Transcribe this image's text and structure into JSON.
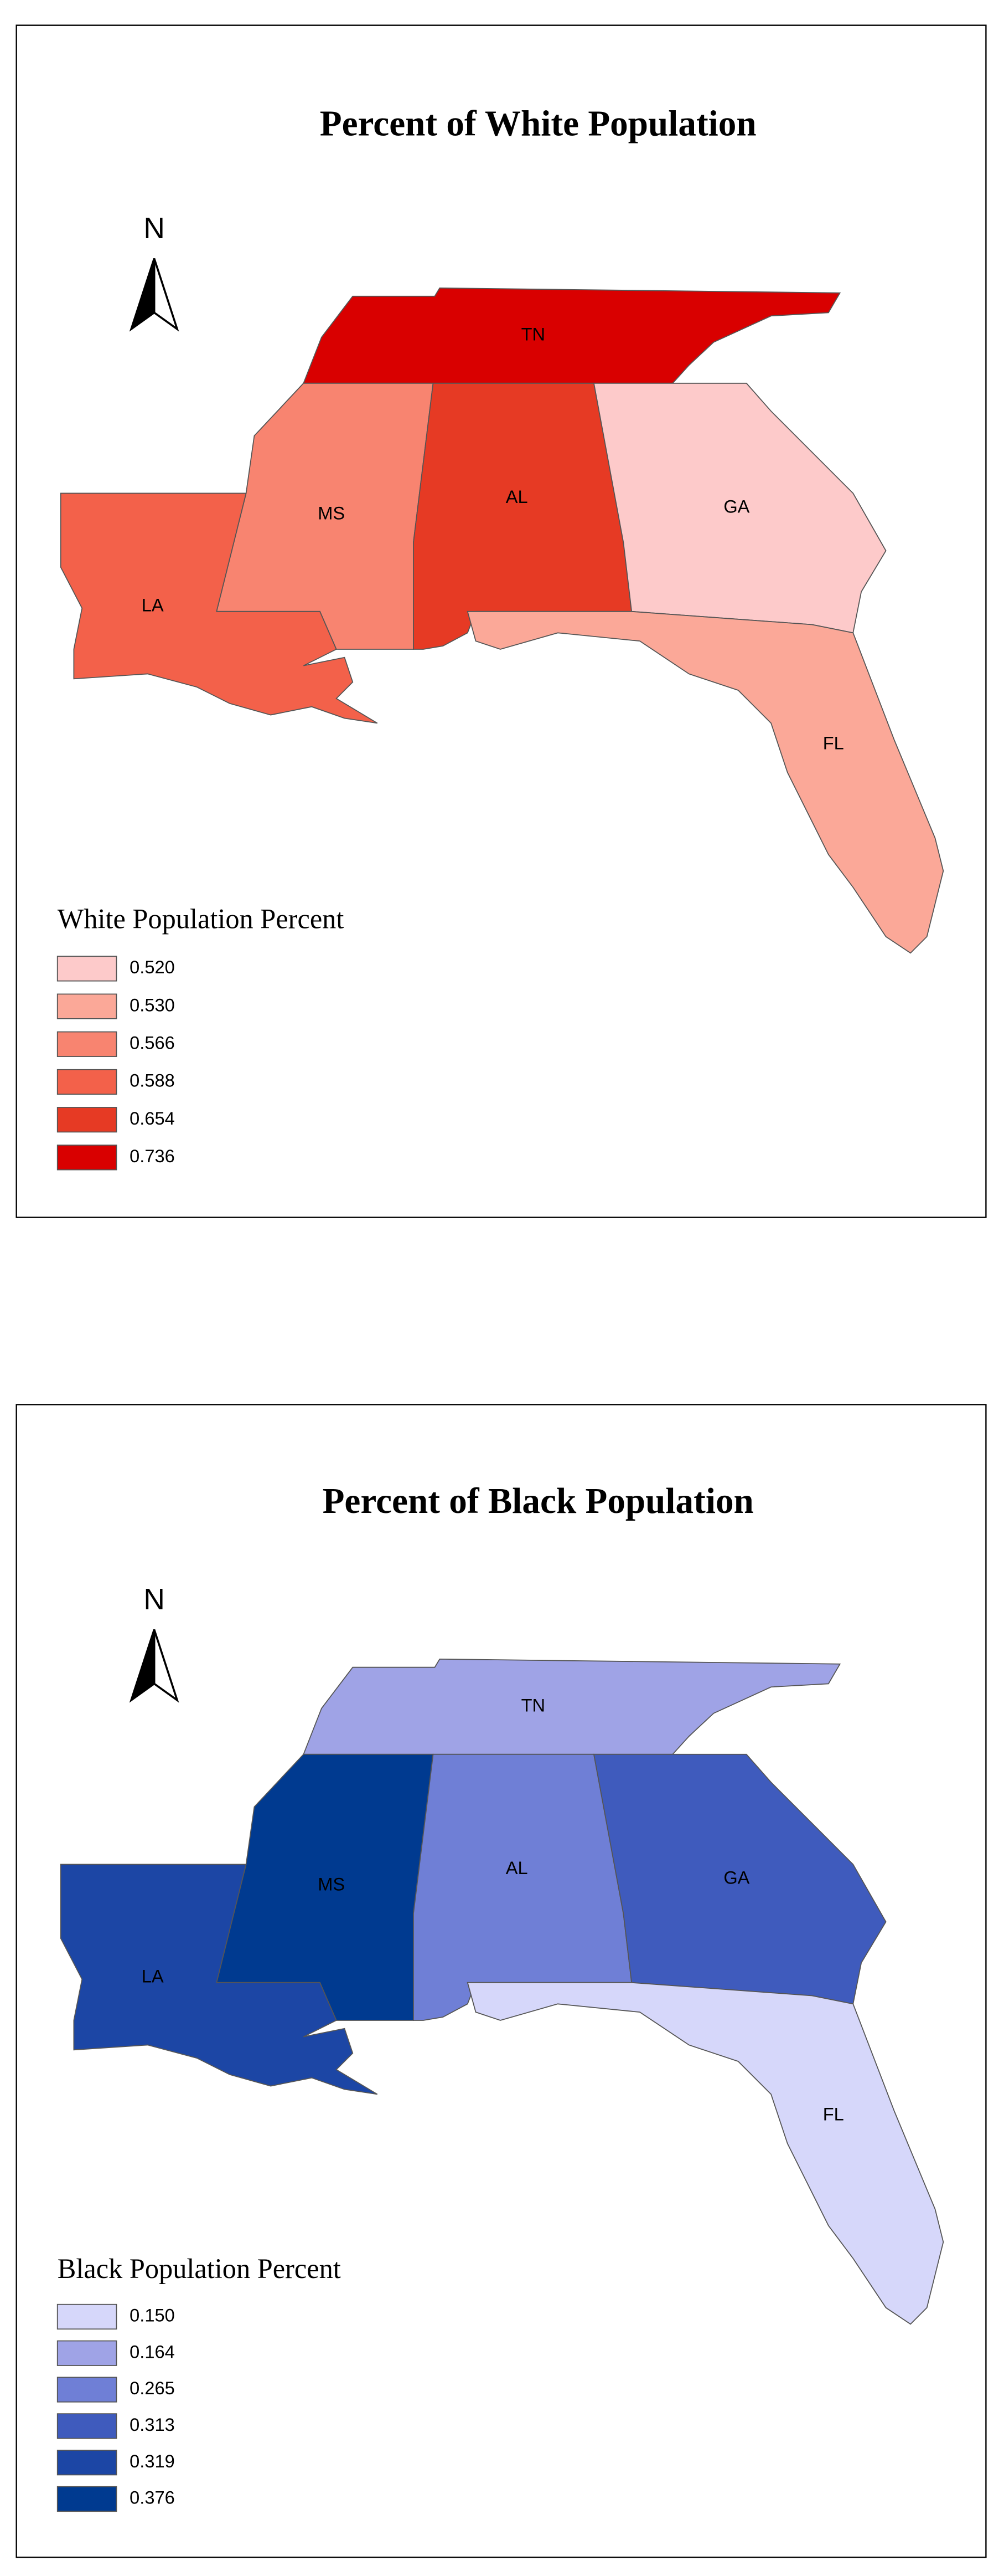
{
  "maps": [
    {
      "title": "Percent of White Population",
      "legend_title": "White Population Percent",
      "legend": [
        {
          "value": 0.52,
          "label": "0.520",
          "color": "#fdcaca"
        },
        {
          "value": 0.53,
          "label": "0.530",
          "color": "#fba898"
        },
        {
          "value": 0.566,
          "label": "0.566",
          "color": "#f88470"
        },
        {
          "value": 0.588,
          "label": "0.588",
          "color": "#f3614a"
        },
        {
          "value": 0.654,
          "label": "0.654",
          "color": "#e63a24"
        },
        {
          "value": 0.736,
          "label": "0.736",
          "color": "#d90000"
        }
      ],
      "states": [
        {
          "abbr": "TN",
          "value": 0.736
        },
        {
          "abbr": "MS",
          "value": 0.566
        },
        {
          "abbr": "AL",
          "value": 0.654
        },
        {
          "abbr": "GA",
          "value": 0.52
        },
        {
          "abbr": "FL",
          "value": 0.53
        },
        {
          "abbr": "LA",
          "value": 0.588
        }
      ],
      "north": "N"
    },
    {
      "title": "Percent of Black Population",
      "legend_title": "Black Population Percent",
      "legend": [
        {
          "value": 0.15,
          "label": "0.150",
          "color": "#d6d7fa"
        },
        {
          "value": 0.164,
          "label": "0.164",
          "color": "#9fa3e6"
        },
        {
          "value": 0.265,
          "label": "0.265",
          "color": "#6f7fd6"
        },
        {
          "value": 0.313,
          "label": "0.313",
          "color": "#3f5bbd"
        },
        {
          "value": 0.319,
          "label": "0.319",
          "color": "#1c46a5"
        },
        {
          "value": 0.376,
          "label": "0.376",
          "color": "#003a90"
        }
      ],
      "states": [
        {
          "abbr": "TN",
          "value": 0.164
        },
        {
          "abbr": "MS",
          "value": 0.376
        },
        {
          "abbr": "AL",
          "value": 0.265
        },
        {
          "abbr": "GA",
          "value": 0.313
        },
        {
          "abbr": "FL",
          "value": 0.15
        },
        {
          "abbr": "LA",
          "value": 0.319
        }
      ],
      "north": "N"
    }
  ]
}
